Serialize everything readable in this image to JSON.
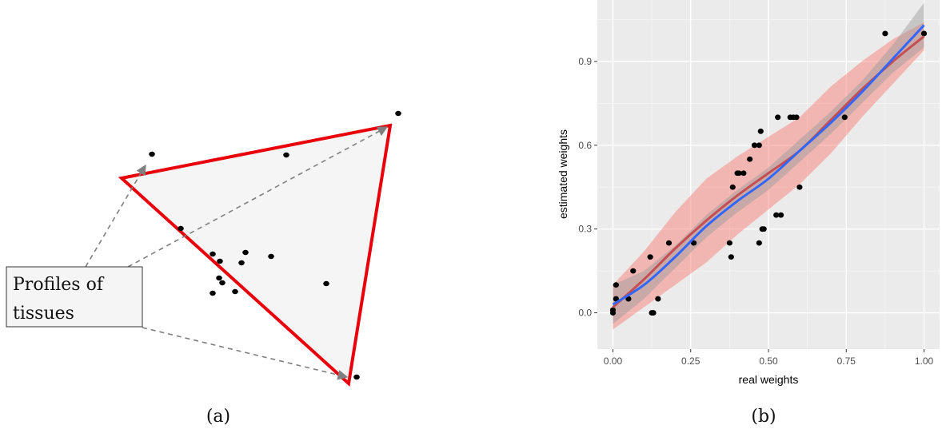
{
  "panel_a": {
    "caption": "(a)",
    "label_box": {
      "line1": "Profiles of",
      "line2": "tissues"
    }
  },
  "panel_b": {
    "caption": "(b)"
  },
  "chart_data": [
    {
      "type": "scatter",
      "panel": "a",
      "title": "",
      "description_shape": "triangle",
      "colors": {
        "triangle_edge": "#e8000b",
        "triangle_fill": "#f5f5f5",
        "points": "#000000",
        "arrows": "#7f7f7f"
      },
      "x": [
        498,
        190,
        358,
        226,
        266,
        275,
        307,
        302,
        339,
        274,
        278,
        266,
        294,
        408,
        446
      ],
      "y": [
        142,
        193,
        194,
        286,
        318,
        327,
        316,
        329,
        321,
        348,
        354,
        367,
        365,
        355,
        472
      ],
      "note_units": "panel-a has no axes"
    },
    {
      "type": "scatter",
      "panel": "b",
      "title": "",
      "xlabel": "real weights",
      "ylabel": "estimated weights",
      "xlim": [
        -0.05,
        1.05
      ],
      "ylim": [
        -0.13,
        1.12
      ],
      "xticks": [
        "0.00",
        "0.25",
        "0.50",
        "0.75",
        "1.00"
      ],
      "yticks": [
        "0.0",
        "0.3",
        "0.6",
        "0.9"
      ],
      "grid": true,
      "background": "#ebebeb",
      "points": {
        "x": [
          0.0,
          0.0,
          0.01,
          0.01,
          0.05,
          0.065,
          0.12,
          0.125,
          0.13,
          0.145,
          0.18,
          0.26,
          0.375,
          0.38,
          0.385,
          0.4,
          0.405,
          0.42,
          0.44,
          0.455,
          0.47,
          0.47,
          0.475,
          0.48,
          0.485,
          0.525,
          0.53,
          0.54,
          0.57,
          0.58,
          0.59,
          0.6,
          0.745,
          0.875,
          1.0
        ],
        "y": [
          0.0,
          0.01,
          0.05,
          0.1,
          0.05,
          0.15,
          0.2,
          0.0,
          0.0,
          0.05,
          0.25,
          0.25,
          0.25,
          0.2,
          0.45,
          0.5,
          0.5,
          0.5,
          0.55,
          0.6,
          0.25,
          0.6,
          0.65,
          0.3,
          0.3,
          0.35,
          0.7,
          0.35,
          0.7,
          0.7,
          0.7,
          0.45,
          0.7,
          1.0,
          1.0
        ]
      },
      "series": [
        {
          "color": "#3366ff",
          "ribbon_color": "#999999",
          "x": [
            0.0,
            0.1,
            0.2,
            0.3,
            0.4,
            0.5,
            0.6,
            0.7,
            0.8,
            0.9,
            1.0
          ],
          "values": [
            0.03,
            0.1,
            0.2,
            0.31,
            0.4,
            0.48,
            0.58,
            0.68,
            0.79,
            0.91,
            1.03
          ],
          "band": [
            0.07,
            0.05,
            0.04,
            0.04,
            0.04,
            0.04,
            0.04,
            0.04,
            0.04,
            0.05,
            0.08
          ]
        },
        {
          "color": "#c44e52",
          "ribbon_color": "#f8766d",
          "x": [
            0.0,
            0.1,
            0.2,
            0.3,
            0.4,
            0.5,
            0.6,
            0.7,
            0.8,
            0.9,
            1.0
          ],
          "values": [
            0.02,
            0.12,
            0.23,
            0.33,
            0.42,
            0.5,
            0.58,
            0.69,
            0.8,
            0.9,
            0.99
          ],
          "band": [
            0.08,
            0.1,
            0.13,
            0.15,
            0.14,
            0.13,
            0.12,
            0.12,
            0.1,
            0.08,
            0.05
          ]
        }
      ]
    }
  ]
}
